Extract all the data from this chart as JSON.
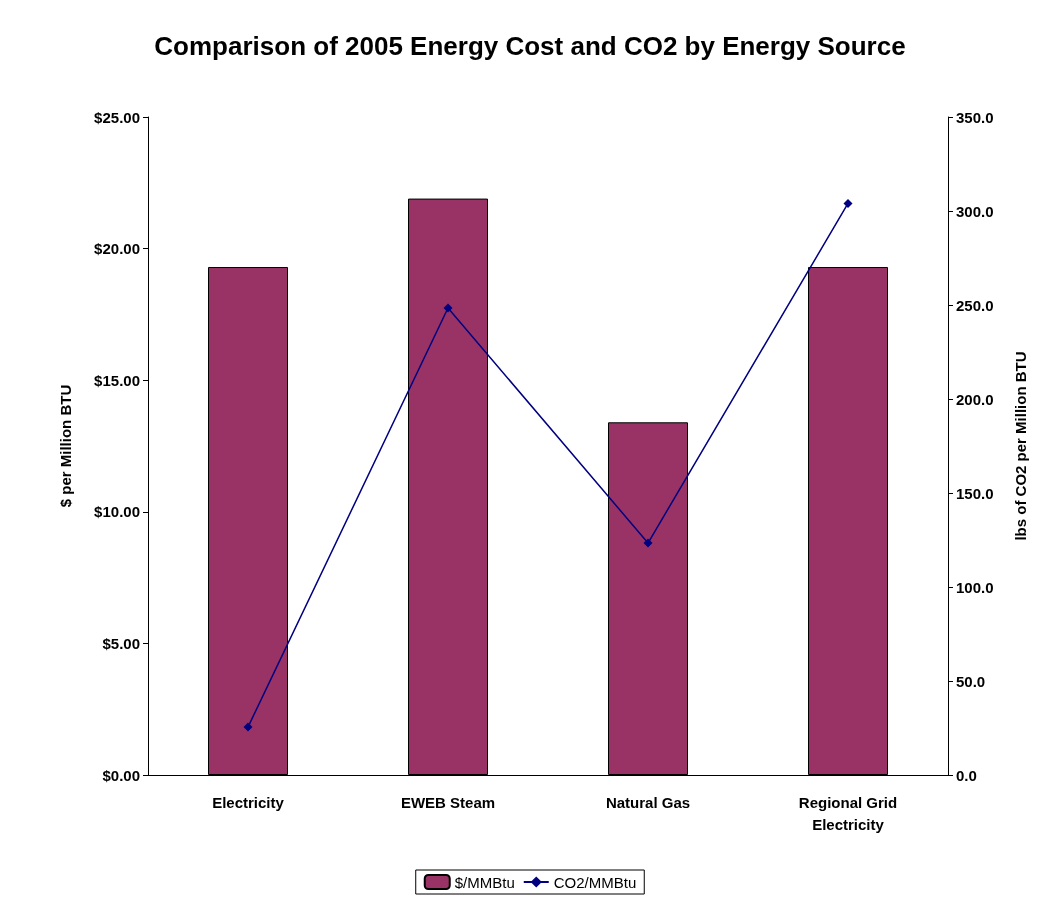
{
  "chart_data": {
    "type": "bar",
    "title": "Comparison of 2005 Energy Cost and CO2 by Energy Source",
    "categories": [
      "Electricity",
      "EWEB Steam",
      "Natural Gas",
      "Regional Grid\nElectricity"
    ],
    "ylabel": "$ per Million BTU",
    "y2label": "lbs of CO2 per Million BTU",
    "series": [
      {
        "name": "$/MMBtu",
        "color": "#993366",
        "values": [
          19.3,
          21.9,
          13.4,
          19.3
        ]
      },
      {
        "name": "CO2/MMBtu",
        "type": "line",
        "axis": "y2",
        "color": "#000080",
        "marker": "diamond",
        "values": [
          25.5,
          248.4,
          123.4,
          304.0
        ]
      }
    ],
    "ylim": [
      0,
      25
    ],
    "yticks": [
      {
        "value": 0,
        "label": "$0.00"
      },
      {
        "value": 5,
        "label": "$5.00"
      },
      {
        "value": 10,
        "label": "$10.00"
      },
      {
        "value": 15,
        "label": "$15.00"
      },
      {
        "value": 20,
        "label": "$20.00"
      },
      {
        "value": 25,
        "label": "$25.00"
      }
    ],
    "y2lim": [
      0,
      350
    ],
    "y2ticks": [
      {
        "value": 0,
        "label": "0.0"
      },
      {
        "value": 50,
        "label": "50.0"
      },
      {
        "value": 100,
        "label": "100.0"
      },
      {
        "value": 150,
        "label": "150.0"
      },
      {
        "value": 200,
        "label": "200.0"
      },
      {
        "value": 250,
        "label": "250.0"
      },
      {
        "value": 300,
        "label": "300.0"
      },
      {
        "value": 350,
        "label": "350.0"
      }
    ],
    "grid": false,
    "legend": "bottom"
  }
}
